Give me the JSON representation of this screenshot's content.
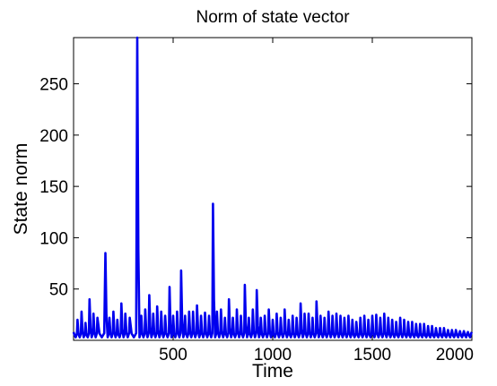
{
  "chart_data": {
    "type": "line",
    "title": "Norm of state vector",
    "xlabel": "Time",
    "ylabel": "State norm",
    "xlim": [
      0,
      2000
    ],
    "ylim": [
      0,
      295
    ],
    "xticks": [
      500,
      1000,
      1500,
      2000
    ],
    "yticks": [
      50,
      100,
      150,
      200,
      250
    ],
    "grid": false,
    "legend": "none",
    "series": [
      {
        "color": "#0000ee",
        "baseline_peaks": [
          [
            0,
            8
          ],
          [
            20,
            20
          ],
          [
            40,
            28
          ],
          [
            60,
            17
          ],
          [
            80,
            40
          ],
          [
            100,
            26
          ],
          [
            120,
            22
          ],
          [
            160,
            85
          ],
          [
            180,
            22
          ],
          [
            200,
            28
          ],
          [
            220,
            20
          ],
          [
            240,
            36
          ],
          [
            260,
            26
          ],
          [
            282,
            22
          ],
          [
            320,
            295
          ],
          [
            340,
            24
          ],
          [
            360,
            30
          ],
          [
            380,
            44
          ],
          [
            400,
            26
          ],
          [
            420,
            33
          ],
          [
            440,
            28
          ],
          [
            460,
            24
          ],
          [
            482,
            52
          ],
          [
            500,
            24
          ],
          [
            520,
            28
          ],
          [
            540,
            68
          ],
          [
            560,
            24
          ],
          [
            580,
            28
          ],
          [
            600,
            28
          ],
          [
            620,
            34
          ],
          [
            640,
            24
          ],
          [
            660,
            27
          ],
          [
            680,
            24
          ],
          [
            700,
            133
          ],
          [
            720,
            28
          ],
          [
            740,
            30
          ],
          [
            760,
            22
          ],
          [
            780,
            40
          ],
          [
            800,
            22
          ],
          [
            820,
            30
          ],
          [
            840,
            24
          ],
          [
            860,
            54
          ],
          [
            880,
            22
          ],
          [
            900,
            30
          ],
          [
            920,
            49
          ],
          [
            940,
            22
          ],
          [
            960,
            24
          ],
          [
            980,
            30
          ],
          [
            1000,
            20
          ],
          [
            1020,
            26
          ],
          [
            1040,
            22
          ],
          [
            1060,
            30
          ],
          [
            1080,
            20
          ],
          [
            1100,
            24
          ],
          [
            1120,
            22
          ],
          [
            1140,
            36
          ],
          [
            1160,
            26
          ],
          [
            1180,
            26
          ],
          [
            1200,
            22
          ],
          [
            1220,
            38
          ],
          [
            1240,
            24
          ],
          [
            1260,
            22
          ],
          [
            1280,
            28
          ],
          [
            1300,
            24
          ],
          [
            1320,
            26
          ],
          [
            1340,
            24
          ],
          [
            1360,
            22
          ],
          [
            1380,
            24
          ],
          [
            1400,
            20
          ],
          [
            1420,
            18
          ],
          [
            1440,
            22
          ],
          [
            1460,
            24
          ],
          [
            1480,
            20
          ],
          [
            1500,
            24
          ],
          [
            1520,
            25
          ],
          [
            1540,
            22
          ],
          [
            1560,
            26
          ],
          [
            1580,
            22
          ],
          [
            1600,
            20
          ],
          [
            1620,
            18
          ],
          [
            1640,
            22
          ],
          [
            1660,
            20
          ],
          [
            1680,
            18
          ],
          [
            1700,
            18
          ],
          [
            1720,
            16
          ],
          [
            1740,
            16
          ],
          [
            1760,
            16
          ],
          [
            1780,
            14
          ],
          [
            1800,
            14
          ],
          [
            1820,
            12
          ],
          [
            1840,
            12
          ],
          [
            1860,
            12
          ],
          [
            1880,
            10
          ],
          [
            1900,
            10
          ],
          [
            1920,
            10
          ],
          [
            1940,
            9
          ],
          [
            1960,
            9
          ],
          [
            1980,
            8
          ],
          [
            2000,
            8
          ]
        ],
        "trough": 3
      }
    ]
  }
}
